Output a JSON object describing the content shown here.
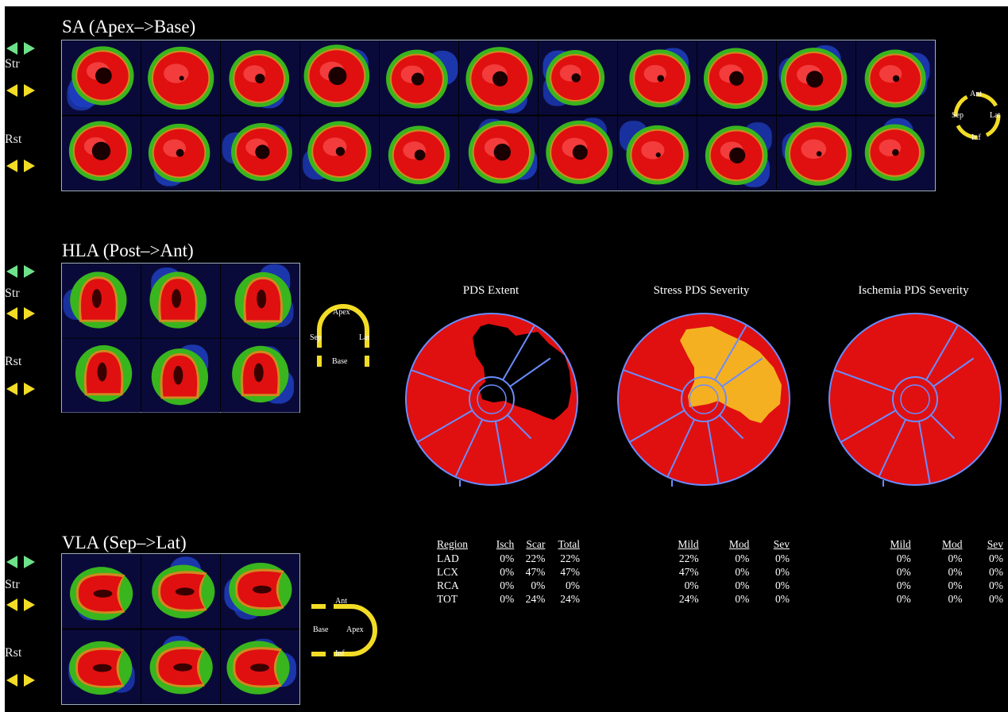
{
  "colors": {
    "background": "#000000",
    "myocardium": "#e01010",
    "defect_extent": "#000000",
    "defect_severity": "#f5b021",
    "border_green": "#39b51d",
    "border_blue": "#1f3fc0",
    "territory_lines": "#6a8cff",
    "arrow_green": "#6ee28a",
    "arrow_yellow": "#f2dc26"
  },
  "icons": {
    "scroll_left": "arrow-left-icon",
    "scroll_right": "arrow-right-icon"
  },
  "sa": {
    "title": "SA (Apex–>Base)",
    "rows": [
      {
        "label": "Str"
      },
      {
        "label": "Rst"
      }
    ],
    "slice_count": 11,
    "orientation": {
      "top": "Ant",
      "left": "Sep",
      "right": "Lat",
      "bottom": "Inf"
    }
  },
  "hla": {
    "title": "HLA (Post–>Ant)",
    "rows": [
      {
        "label": "Str"
      },
      {
        "label": "Rst"
      }
    ],
    "slice_count": 3,
    "orientation": {
      "top": "Apex",
      "left": "Sep",
      "right": "Lat",
      "bottom": "Base"
    }
  },
  "vla": {
    "title": "VLA (Sep–>Lat)",
    "rows": [
      {
        "label": "Str"
      },
      {
        "label": "Rst"
      }
    ],
    "slice_count": 3,
    "orientation": {
      "top": "Ant",
      "left": "Base",
      "right": "Apex",
      "bottom": "Inf"
    }
  },
  "polar_maps": [
    {
      "title": "PDS Extent",
      "defect": "extent"
    },
    {
      "title": "Stress PDS Severity",
      "defect": "severity"
    },
    {
      "title": "Ischemia PDS Severity",
      "defect": "none"
    }
  ],
  "extent_table": {
    "headers": [
      "Region",
      "Isch",
      "Scar",
      "Total"
    ],
    "rows": [
      [
        "LAD",
        "0%",
        "22%",
        "22%"
      ],
      [
        "LCX",
        "0%",
        "47%",
        "47%"
      ],
      [
        "RCA",
        "0%",
        "0%",
        "0%"
      ],
      [
        "TOT",
        "0%",
        "24%",
        "24%"
      ]
    ]
  },
  "stress_table": {
    "headers": [
      "Mild",
      "Mod",
      "Sev"
    ],
    "rows": [
      [
        "22%",
        "0%",
        "0%"
      ],
      [
        "47%",
        "0%",
        "0%"
      ],
      [
        "0%",
        "0%",
        "0%"
      ],
      [
        "24%",
        "0%",
        "0%"
      ]
    ]
  },
  "ischemia_table": {
    "headers": [
      "Mild",
      "Mod",
      "Sev"
    ],
    "rows": [
      [
        "0%",
        "0%",
        "0%"
      ],
      [
        "0%",
        "0%",
        "0%"
      ],
      [
        "0%",
        "0%",
        "0%"
      ],
      [
        "0%",
        "0%",
        "0%"
      ]
    ]
  }
}
